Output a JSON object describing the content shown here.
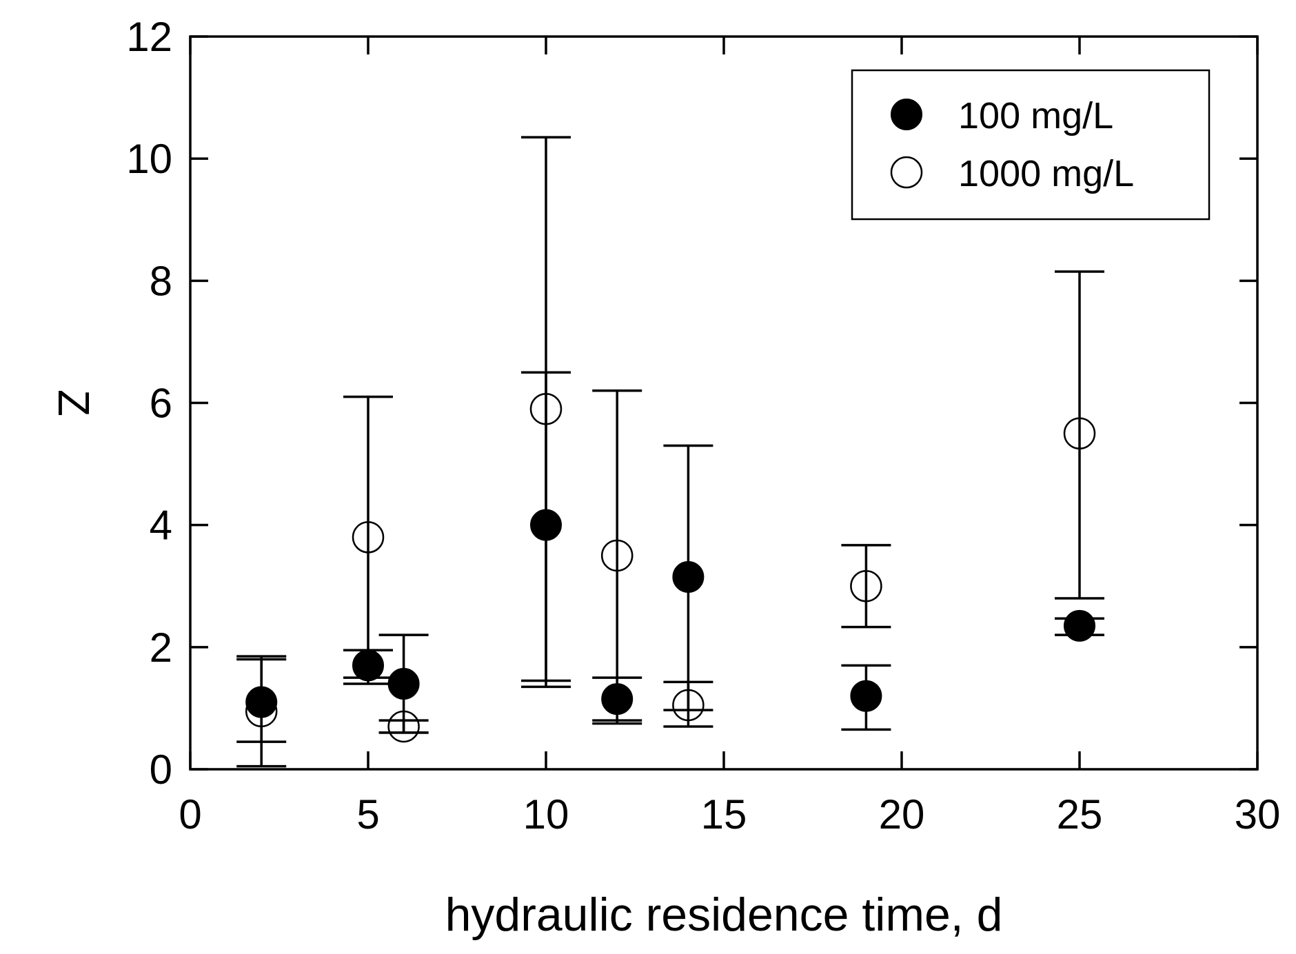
{
  "chart_data": {
    "type": "scatter",
    "title": "",
    "xlabel": "hydraulic residence time, d",
    "ylabel": "Z",
    "xlim": [
      0,
      30
    ],
    "ylim": [
      0,
      12
    ],
    "x_ticks": [
      0,
      5,
      10,
      15,
      20,
      25,
      30
    ],
    "y_ticks": [
      0,
      2,
      4,
      6,
      8,
      10,
      12
    ],
    "legend_position": "top-right",
    "series": [
      {
        "name": "100 mg/L",
        "marker": "filled-circle",
        "points": [
          {
            "x": 2,
            "y": 1.1,
            "err_low": 0.45,
            "err_high": 1.8
          },
          {
            "x": 5,
            "y": 1.7,
            "err_low": 1.4,
            "err_high": 1.95
          },
          {
            "x": 6,
            "y": 1.4,
            "err_low": 0.6,
            "err_high": 2.2
          },
          {
            "x": 10,
            "y": 4.0,
            "err_low": 1.45,
            "err_high": 6.5
          },
          {
            "x": 12,
            "y": 1.15,
            "err_low": 0.75,
            "err_high": 1.5
          },
          {
            "x": 14,
            "y": 3.15,
            "err_low": 0.97,
            "err_high": 5.3
          },
          {
            "x": 19,
            "y": 1.2,
            "err_low": 0.65,
            "err_high": 1.7
          },
          {
            "x": 25,
            "y": 2.35,
            "err_low": 2.2,
            "err_high": 2.47
          }
        ]
      },
      {
        "name": "1000 mg/L",
        "marker": "open-circle",
        "points": [
          {
            "x": 2,
            "y": 0.95,
            "err_low": 0.05,
            "err_high": 1.85
          },
          {
            "x": 5,
            "y": 3.8,
            "err_low": 1.5,
            "err_high": 6.1
          },
          {
            "x": 6,
            "y": 0.7,
            "err_low": 0.6,
            "err_high": 0.8
          },
          {
            "x": 10,
            "y": 5.9,
            "err_low": 1.35,
            "err_high": 10.35
          },
          {
            "x": 12,
            "y": 3.5,
            "err_low": 0.8,
            "err_high": 6.2
          },
          {
            "x": 14,
            "y": 1.05,
            "err_low": 0.7,
            "err_high": 1.43
          },
          {
            "x": 19,
            "y": 3.0,
            "err_low": 2.33,
            "err_high": 3.67
          },
          {
            "x": 25,
            "y": 5.5,
            "err_low": 2.8,
            "err_high": 8.15
          }
        ]
      }
    ]
  }
}
